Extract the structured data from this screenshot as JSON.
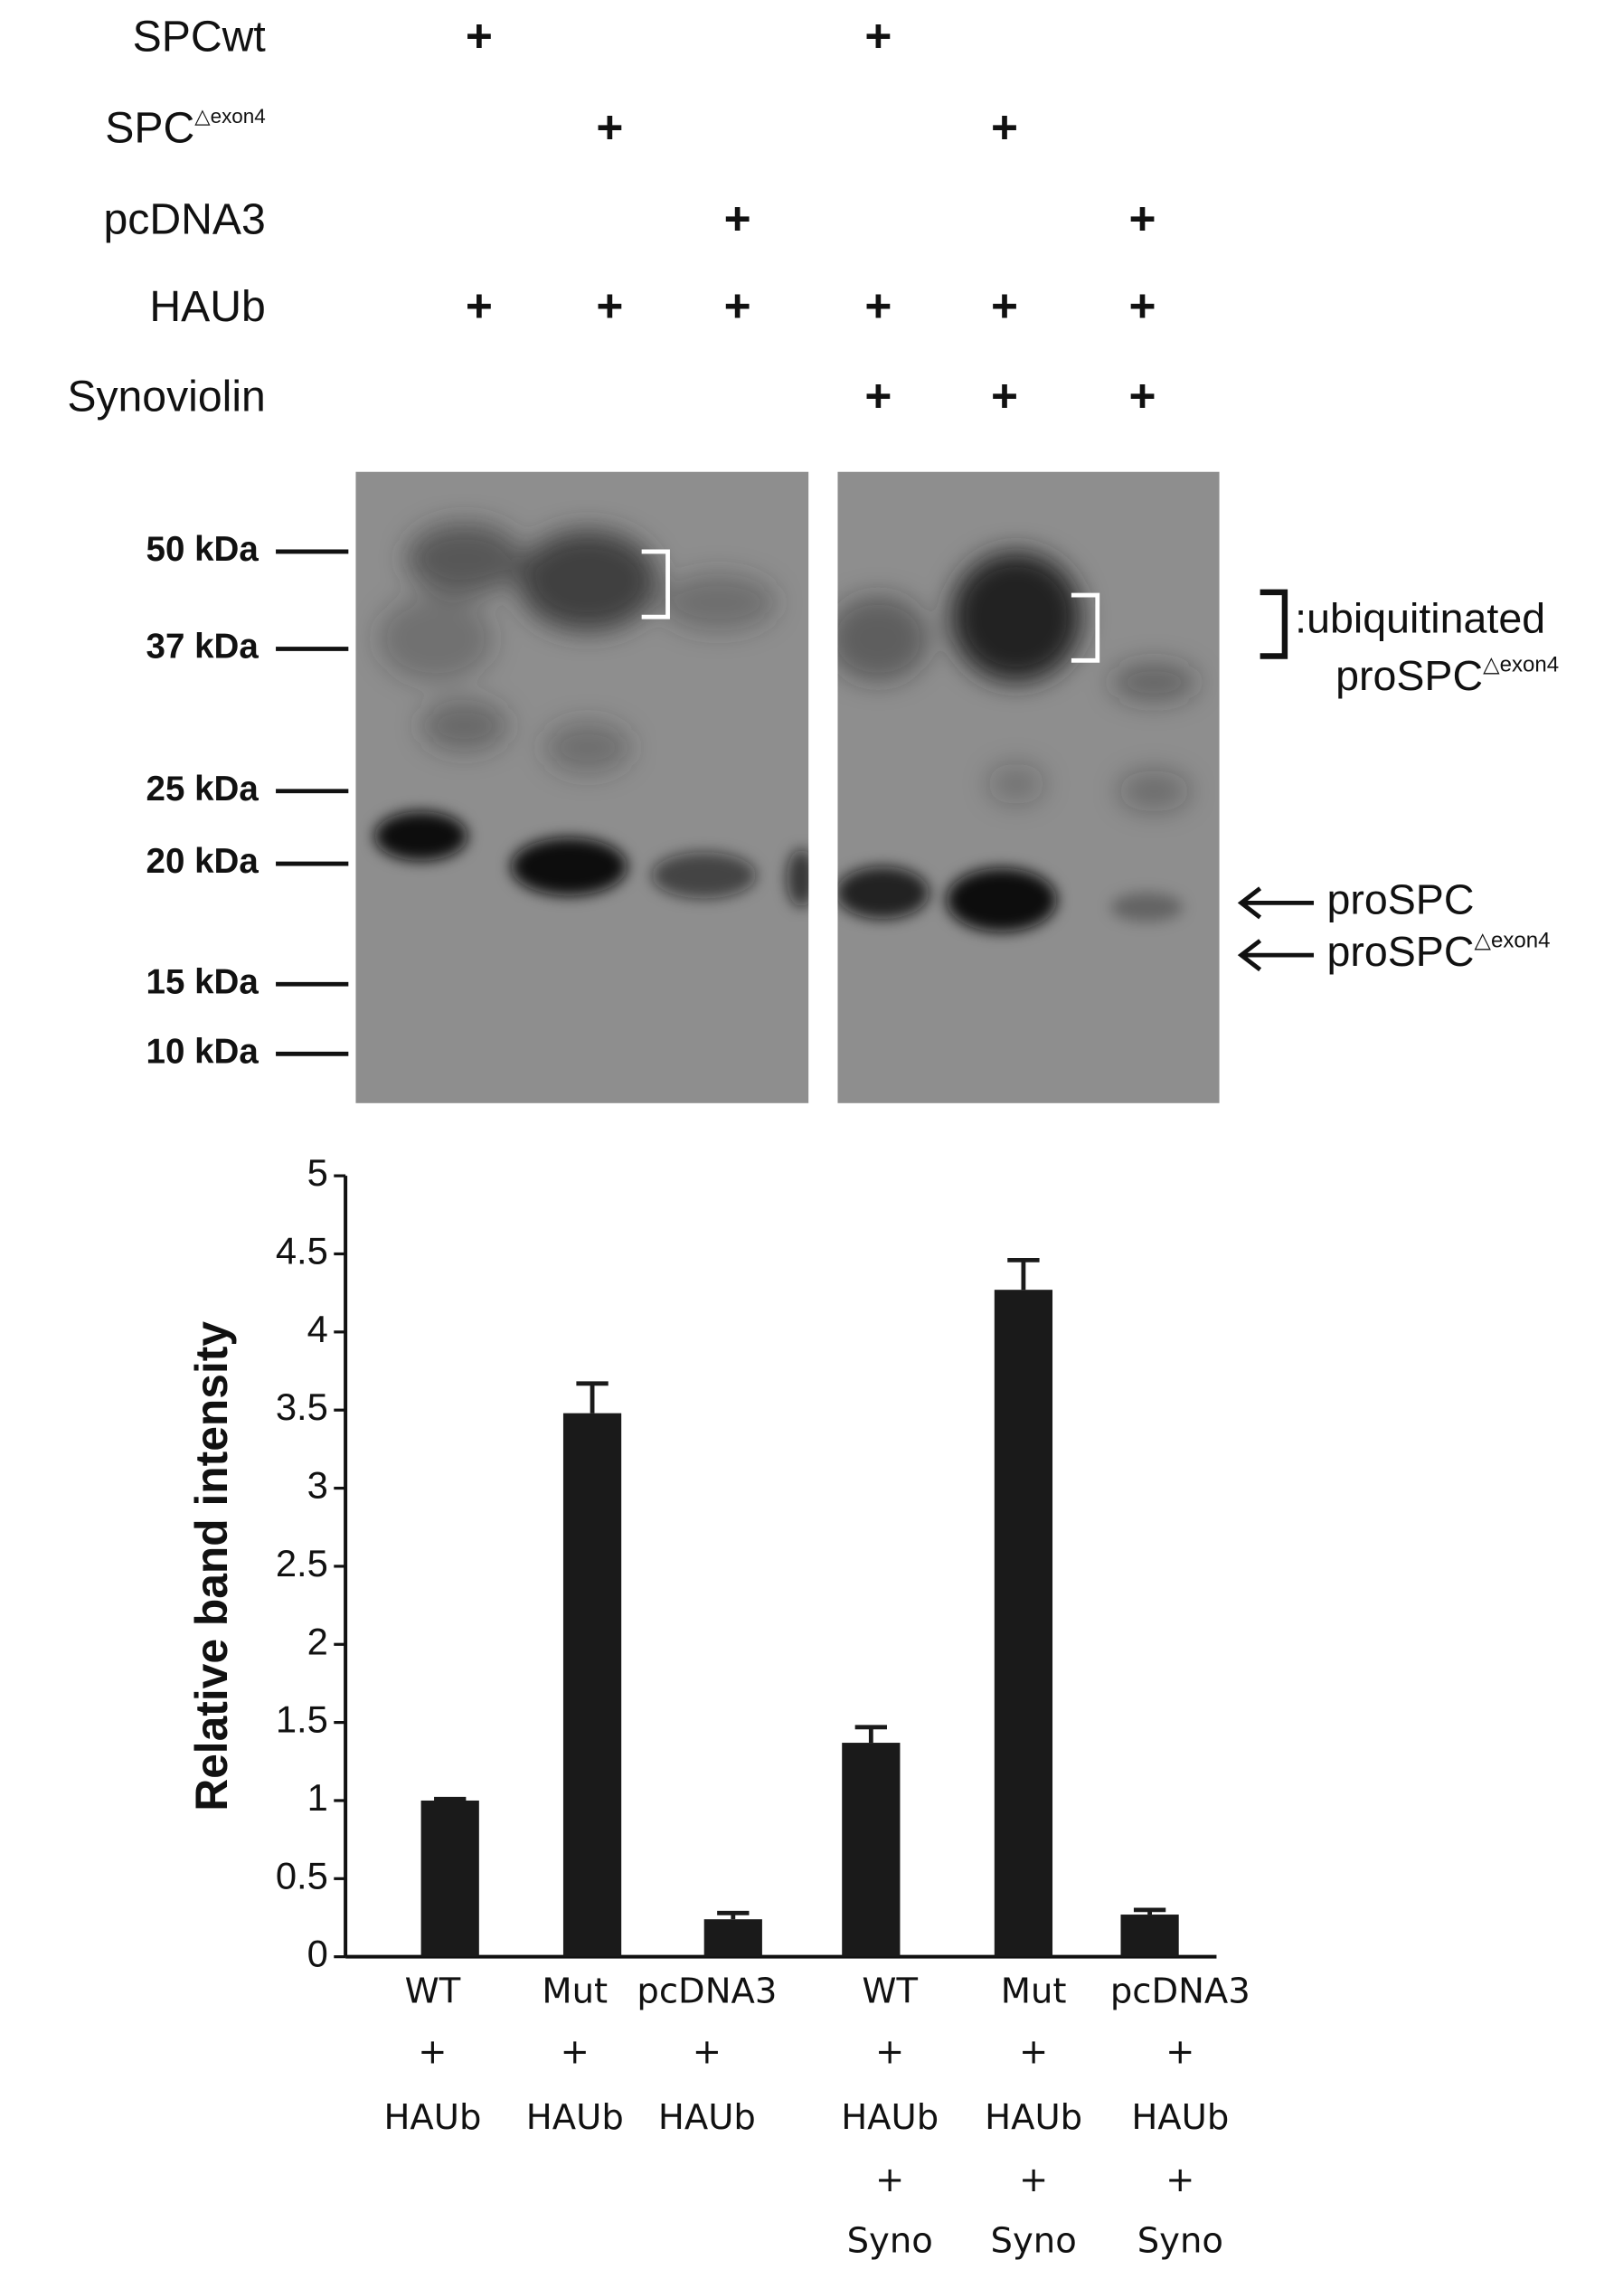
{
  "blot": {
    "rows": [
      {
        "label": "SPCwt",
        "marks": [
          "+",
          null,
          null,
          "+",
          null,
          null
        ]
      },
      {
        "label": "SPC",
        "superscript": "△exon4",
        "marks": [
          null,
          "+",
          null,
          null,
          "+",
          null
        ]
      },
      {
        "label": "pcDNA3",
        "marks": [
          null,
          null,
          "+",
          null,
          null,
          "+"
        ]
      },
      {
        "label": "HAUb",
        "marks": [
          "+",
          "+",
          "+",
          "+",
          "+",
          "+"
        ]
      },
      {
        "label": "Synoviolin",
        "marks": [
          null,
          null,
          null,
          "+",
          "+",
          "+"
        ]
      }
    ],
    "markers": [
      "50 kDa",
      "37 kDa",
      "25 kDa",
      "20 kDa",
      "15 kDa",
      "10 kDa"
    ],
    "annotations": {
      "ubiquitinated": {
        "text": ":ubiquitinated",
        "line2": "proSPC",
        "superscript": "△exon4"
      },
      "prospc": "proSPC",
      "prospc_mut": {
        "text": "proSPC",
        "superscript": "△exon4"
      }
    }
  },
  "chart_data": {
    "type": "bar",
    "y_label": "Relative band intensity",
    "categories": [
      [
        "WT",
        "+",
        "HAUb"
      ],
      [
        "Mut",
        "+",
        "HAUb"
      ],
      [
        "pcDNA3",
        "+",
        "HAUb"
      ],
      [
        "WT",
        "+",
        "HAUb",
        "+",
        "Syno"
      ],
      [
        "Mut",
        "+",
        "HAUb",
        "+",
        "Syno"
      ],
      [
        "pcDNA3",
        "+",
        "HAUb",
        "+",
        "Syno"
      ]
    ],
    "values": [
      1.0,
      3.48,
      0.24,
      1.37,
      4.27,
      0.27
    ],
    "errors": [
      0.01,
      0.19,
      0.04,
      0.1,
      0.19,
      0.03
    ],
    "color": "#1a1a1a",
    "ylim": [
      0,
      5
    ],
    "yticks": [
      0,
      0.5,
      1,
      1.5,
      2,
      2.5,
      3,
      3.5,
      4,
      4.5,
      5
    ]
  }
}
